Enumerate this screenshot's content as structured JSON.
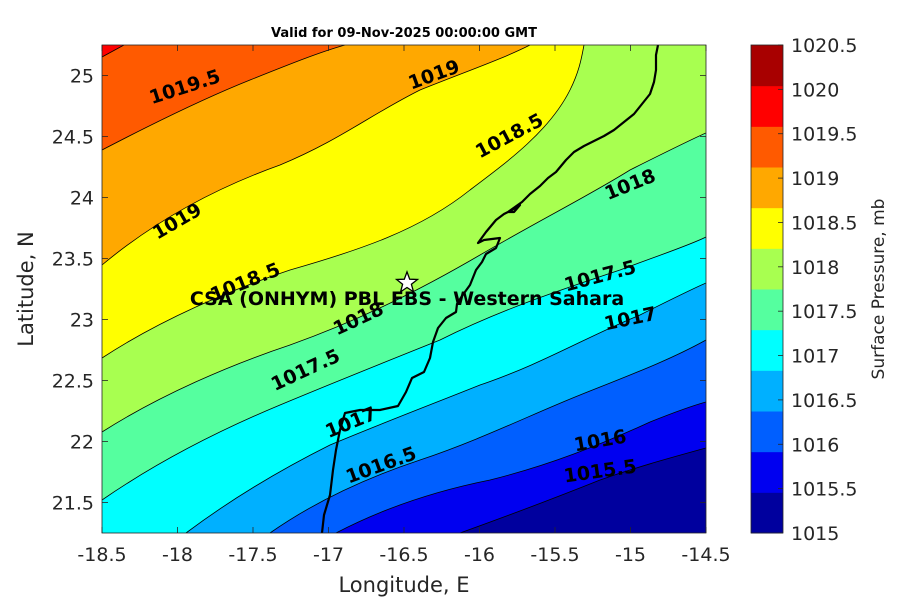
{
  "title": "Valid for 09-Nov-2025 00:00:00 GMT",
  "x_axis": {
    "label": "Longitude, E",
    "range": [
      -18.5,
      -14.5
    ],
    "ticks": [
      "-18.5",
      "-18",
      "-17.5",
      "-17",
      "-16.5",
      "-16",
      "-15.5",
      "-15",
      "-14.5"
    ]
  },
  "y_axis": {
    "label": "Latitude, N",
    "range": [
      21.25,
      25.25
    ],
    "ticks": [
      "21.5",
      "22",
      "22.5",
      "23",
      "23.5",
      "24",
      "24.5",
      "25"
    ]
  },
  "colorbar": {
    "label": "Surface Pressure, mb",
    "levels": [
      "1015",
      "1015.5",
      "1016",
      "1016.5",
      "1017",
      "1017.5",
      "1018",
      "1018.5",
      "1019",
      "1019.5",
      "1020",
      "1020.5"
    ],
    "colors": [
      "#00009e",
      "#0000f0",
      "#005fff",
      "#00b0ff",
      "#00ffff",
      "#55ff9f",
      "#a8ff50",
      "#ffff00",
      "#ffa800",
      "#ff5a00",
      "#ff0000",
      "#a80000"
    ]
  },
  "site": {
    "label": "CSA (ONHYM) PBL EBS  - Western Sahara",
    "lon": -16.48,
    "lat": 23.3,
    "marker": "star-icon"
  },
  "contour_labels": [
    {
      "text": "1019.5",
      "lon": -17.95,
      "lat": 24.9,
      "angle": -18
    },
    {
      "text": "1019",
      "lon": -16.3,
      "lat": 25.0,
      "angle": -20
    },
    {
      "text": "1018.5",
      "lon": -15.8,
      "lat": 24.5,
      "angle": -28
    },
    {
      "text": "1019",
      "lon": -18.0,
      "lat": 23.8,
      "angle": -30
    },
    {
      "text": "1018",
      "lon": -15.0,
      "lat": 24.1,
      "angle": -22
    },
    {
      "text": "1018.5",
      "lon": -17.55,
      "lat": 23.3,
      "angle": -22
    },
    {
      "text": "1017.5",
      "lon": -15.2,
      "lat": 23.35,
      "angle": -15
    },
    {
      "text": "1018",
      "lon": -16.8,
      "lat": 23.0,
      "angle": -25
    },
    {
      "text": "1017",
      "lon": -15.0,
      "lat": 23.0,
      "angle": -12
    },
    {
      "text": "1017.5",
      "lon": -17.15,
      "lat": 22.58,
      "angle": -25
    },
    {
      "text": "1017",
      "lon": -16.85,
      "lat": 22.15,
      "angle": -22
    },
    {
      "text": "1016.5",
      "lon": -16.65,
      "lat": 21.8,
      "angle": -20
    },
    {
      "text": "1016",
      "lon": -15.2,
      "lat": 22.0,
      "angle": -10
    },
    {
      "text": "1015.5",
      "lon": -15.2,
      "lat": 21.75,
      "angle": -8
    }
  ]
}
